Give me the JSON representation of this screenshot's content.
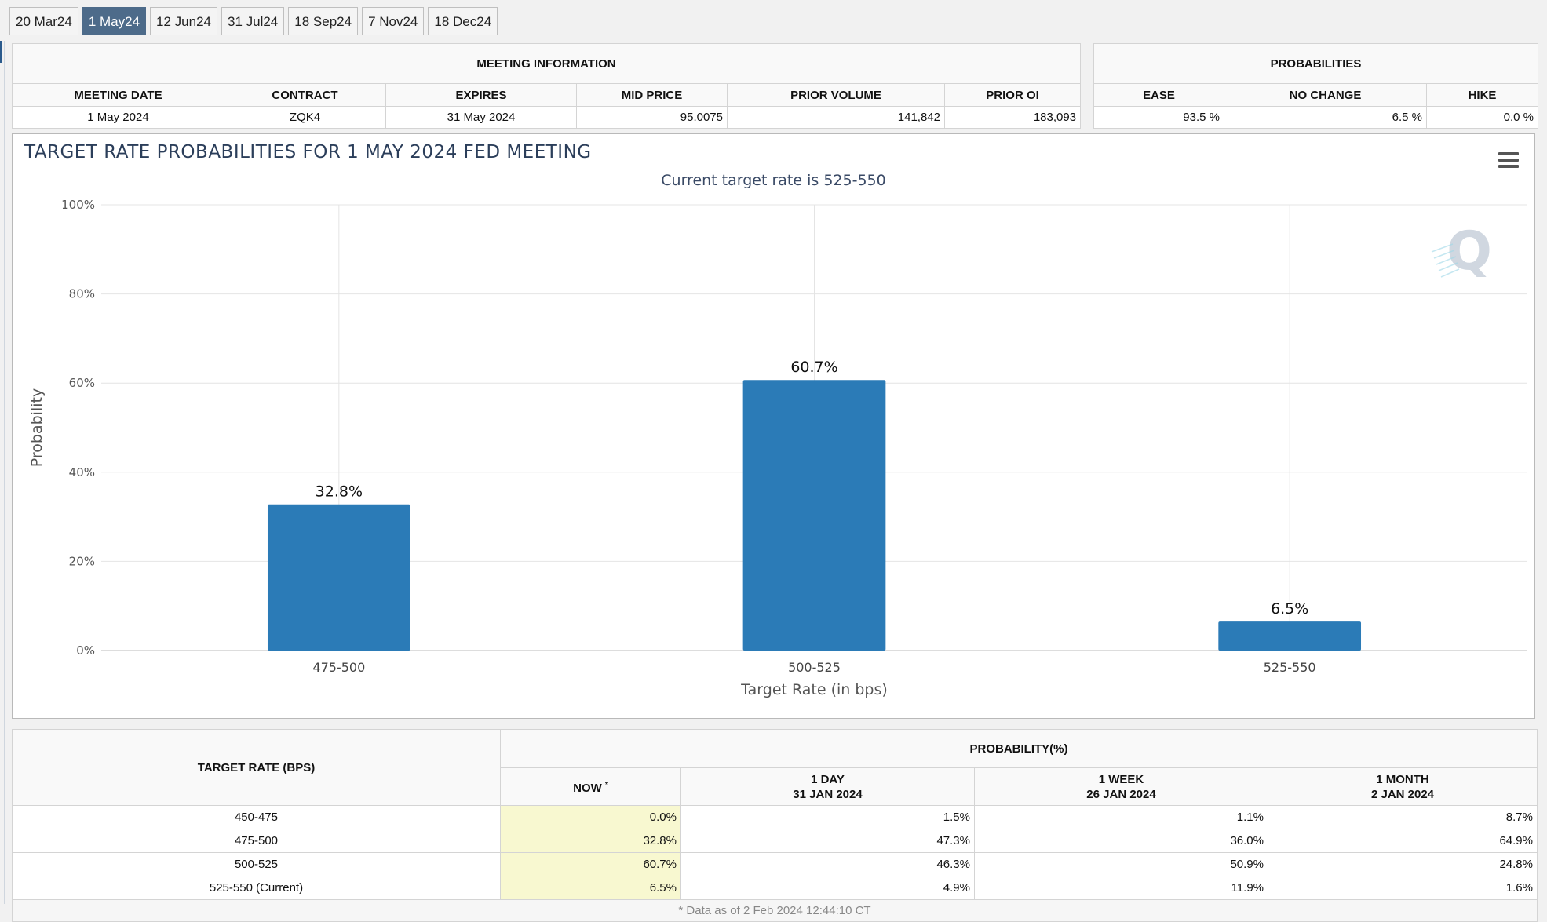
{
  "tabs": [
    "20 Mar24",
    "1 May24",
    "12 Jun24",
    "31 Jul24",
    "18 Sep24",
    "7 Nov24",
    "18 Dec24"
  ],
  "active_tab": 1,
  "meeting_info": {
    "header": "MEETING INFORMATION",
    "columns": [
      "MEETING DATE",
      "CONTRACT",
      "EXPIRES",
      "MID PRICE",
      "PRIOR VOLUME",
      "PRIOR OI"
    ],
    "row": [
      "1 May 2024",
      "ZQK4",
      "31 May 2024",
      "95.0075",
      "141,842",
      "183,093"
    ]
  },
  "probabilities": {
    "header": "PROBABILITIES",
    "columns": [
      "EASE",
      "NO CHANGE",
      "HIKE"
    ],
    "row": [
      "93.5 %",
      "6.5 %",
      "0.0 %"
    ]
  },
  "chart_data": {
    "type": "bar",
    "title": "TARGET RATE PROBABILITIES FOR 1 MAY 2024 FED MEETING",
    "subtitle": "Current target rate is 525-550",
    "categories": [
      "475-500",
      "500-525",
      "525-550"
    ],
    "values": [
      32.8,
      60.7,
      6.5
    ],
    "data_labels": [
      "32.8%",
      "60.7%",
      "6.5%"
    ],
    "xlabel": "Target Rate (in bps)",
    "ylabel": "Probability",
    "ylim": [
      0,
      100
    ],
    "yticks": [
      "0%",
      "20%",
      "40%",
      "60%",
      "80%",
      "100%"
    ],
    "bar_color": "#2b7bb7",
    "grid": true,
    "watermark": "Q"
  },
  "rate_table": {
    "col_target": "TARGET RATE (BPS)",
    "group_header": "PROBABILITY(%)",
    "col_now": "NOW",
    "col_now_mark": "*",
    "col_1day": "1 DAY",
    "col_1day_date": "31 JAN 2024",
    "col_1week": "1 WEEK",
    "col_1week_date": "26 JAN 2024",
    "col_1month": "1 MONTH",
    "col_1month_date": "2 JAN 2024",
    "rows": [
      [
        "450-475",
        "0.0%",
        "1.5%",
        "1.1%",
        "8.7%"
      ],
      [
        "475-500",
        "32.8%",
        "47.3%",
        "36.0%",
        "64.9%"
      ],
      [
        "500-525",
        "60.7%",
        "46.3%",
        "50.9%",
        "24.8%"
      ],
      [
        "525-550 (Current)",
        "6.5%",
        "4.9%",
        "11.9%",
        "1.6%"
      ]
    ],
    "footnote": "* Data as of 2 Feb 2024 12:44:10 CT"
  }
}
